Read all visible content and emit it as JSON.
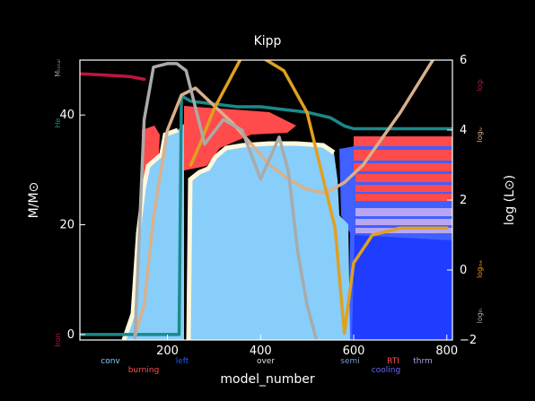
{
  "chart_data": {
    "type": "area",
    "title": "Kipp",
    "xlabel": "model_number",
    "ylabel": "M/M⊙",
    "y2label": "log (L⊙)",
    "xlim": [
      12,
      812
    ],
    "ylim": [
      -1,
      50
    ],
    "y2lim": [
      -2,
      6
    ],
    "xticks": [
      200,
      400,
      600,
      800
    ],
    "yticks": [
      0,
      20,
      40
    ],
    "y2ticks": [
      -2,
      0,
      2,
      4,
      6
    ],
    "xtick_labels": [
      "200",
      "400",
      "600",
      "800"
    ],
    "ytick_labels": [
      "0",
      "20",
      "40"
    ],
    "y2tick_labels": [
      "−2",
      "0",
      "2",
      "4",
      "6"
    ],
    "grid": false,
    "legend_left": [
      {
        "label": "Mₜₒₜₐₗ",
        "color": "#999999"
      },
      {
        "label": "He",
        "color": "#1a8a8a"
      },
      {
        "label": "Iron",
        "color": "#c0143c"
      }
    ],
    "legend_right": [
      {
        "label": "logₗ",
        "color": "#c0143c"
      },
      {
        "label": "logₗᵥ",
        "color": "#d9b08c"
      },
      {
        "label": "logₗₕₑ",
        "color": "#e0a020"
      },
      {
        "label": "logₗₕ",
        "color": "#aaaaaa"
      }
    ],
    "legend_bottom": [
      {
        "label": "conv",
        "color": "#87cefa"
      },
      {
        "label": "burning",
        "color": "#ff5050"
      },
      {
        "label": "left",
        "color": "#2255ff"
      },
      {
        "label": "over",
        "color": "#dddddd"
      },
      {
        "label": "semi",
        "color": "#7799cc"
      },
      {
        "label": "RTI",
        "color": "#ff5050"
      },
      {
        "label": "cooling",
        "color": "#6666ff"
      },
      {
        "label": "thrm",
        "color": "#b39ddb"
      }
    ],
    "series": [
      {
        "name": "Mₜₒₜₐₗ",
        "axis": "left",
        "color": "#aaaaaa",
        "x": [
          12,
          200,
          280,
          400,
          580,
          812
        ],
        "y": [
          50.5,
          50.5,
          50.5,
          50.5,
          50.5,
          50.5
        ]
      },
      {
        "name": "He",
        "axis": "left",
        "color": "#1a8a8a",
        "x": [
          12,
          200,
          205,
          210,
          225,
          230,
          250,
          300,
          350,
          400,
          450,
          500,
          550,
          560,
          580,
          600,
          620,
          700,
          812
        ],
        "y": [
          0,
          0,
          0,
          0,
          0,
          43.5,
          42.5,
          42,
          41.5,
          41.5,
          41,
          40.5,
          39.5,
          39,
          38,
          37.5,
          37.5,
          37.5,
          37.5
        ]
      },
      {
        "name": "Iron",
        "axis": "left",
        "color": "#c0143c",
        "x": [
          12,
          60,
          120,
          150
        ],
        "y": [
          47.5,
          47.3,
          47,
          46.5
        ]
      },
      {
        "name": "logₗ",
        "axis": "right",
        "color": "#c0143c",
        "x": [
          250,
          300,
          400,
          500,
          600,
          700,
          812
        ],
        "y": [
          6.1,
          6.1,
          6.1,
          6.1,
          6.1,
          6.1,
          6.1
        ]
      },
      {
        "name": "logₗᵥ",
        "axis": "right",
        "color": "#d9b08c",
        "x": [
          130,
          150,
          170,
          200,
          230,
          260,
          300,
          340,
          380,
          420,
          460,
          500,
          540,
          580,
          620,
          700,
          770
        ],
        "y": [
          -1.9,
          -1,
          1.5,
          4,
          5,
          5.2,
          4.7,
          4.2,
          3.6,
          3.0,
          2.6,
          2.3,
          2.2,
          2.5,
          3,
          4.5,
          6
        ]
      },
      {
        "name": "logₗₕₑ",
        "axis": "right",
        "color": "#e0a020",
        "x": [
          250,
          270,
          300,
          340,
          360,
          400,
          450,
          500,
          560,
          580,
          600,
          640,
          700,
          760,
          800
        ],
        "y": [
          3,
          3.6,
          4.6,
          5.6,
          6.1,
          6.1,
          5.7,
          4.5,
          1.2,
          -1.8,
          0.2,
          1.0,
          1.2,
          1.2,
          1.2
        ]
      },
      {
        "name": "logₗₕ",
        "axis": "right",
        "color": "#aaaaaa",
        "x": [
          130,
          150,
          170,
          200,
          220,
          240,
          280,
          320,
          360,
          400,
          440,
          460,
          480,
          500,
          520
        ],
        "y": [
          -2,
          4.3,
          5.8,
          5.9,
          5.9,
          5.7,
          3.6,
          4.3,
          4.0,
          2.6,
          3.8,
          2.8,
          0.5,
          -1.0,
          -2
        ]
      }
    ]
  }
}
